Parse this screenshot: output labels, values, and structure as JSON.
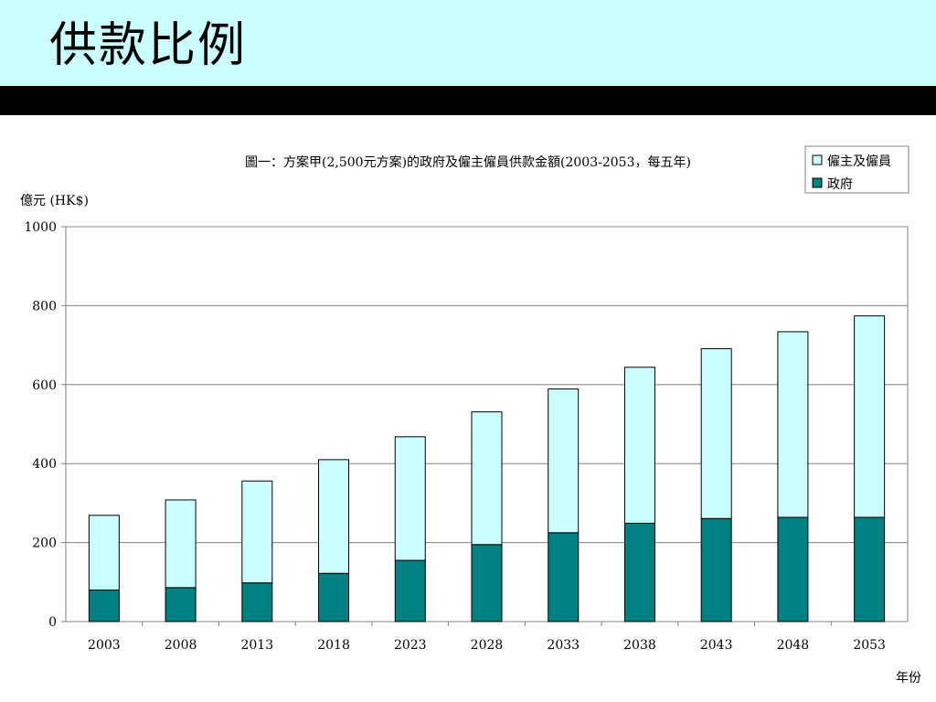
{
  "slide": {
    "title": "供款比例"
  },
  "colors": {
    "header_bg": "#ccffff",
    "employer_employee": "#ccffff",
    "government": "#008080",
    "gridline": "#808080"
  },
  "chart_data": {
    "type": "bar",
    "stacked": true,
    "title": "圖一：方案甲(2,500元方案)的政府及僱主僱員供款金額(2003-2053，每五年)",
    "ylabel": "億元 (HK$)",
    "xlabel": "年份",
    "ylim": [
      0,
      1000
    ],
    "yticks": [
      0,
      200,
      400,
      600,
      800,
      1000
    ],
    "grid": true,
    "legend_position": "top-right",
    "categories": [
      "2003",
      "2008",
      "2013",
      "2018",
      "2023",
      "2028",
      "2033",
      "2038",
      "2043",
      "2048",
      "2053"
    ],
    "series": [
      {
        "name": "政府",
        "values": [
          80,
          86,
          98,
          122,
          155,
          195,
          225,
          249,
          261,
          264,
          264
        ]
      },
      {
        "name": "僱主及僱員",
        "values": [
          189,
          222,
          258,
          288,
          313,
          336,
          364,
          395,
          430,
          470,
          510
        ]
      }
    ],
    "totals": [
      269,
      308,
      356,
      410,
      468,
      531,
      589,
      644,
      691,
      734,
      774
    ]
  }
}
